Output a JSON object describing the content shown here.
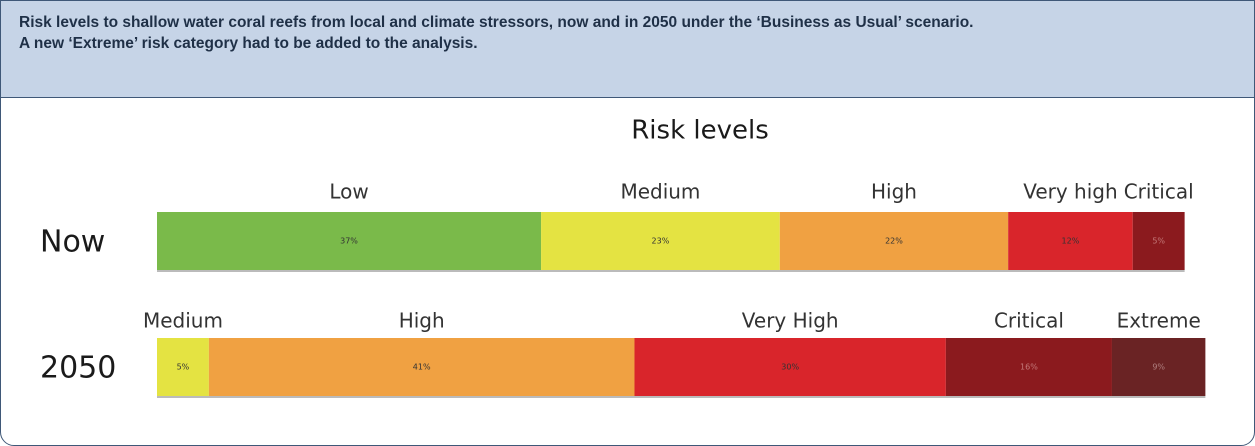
{
  "caption": [
    "Risk levels to shallow water coral reefs from local and climate stressors, now and in 2050 under the ‘Business as Usual’ scenario.",
    "A new ‘Extreme’ risk category had to be added to the analysis."
  ],
  "chart_data": {
    "type": "stacked_bar",
    "title": "Risk levels",
    "xlim": [
      0,
      100
    ],
    "bars": [
      {
        "label": "Now",
        "names": [
          "Low",
          "Medium",
          "High",
          "Very high",
          "Critical"
        ],
        "values": [
          37,
          23,
          22,
          12,
          5
        ],
        "value_labels": [
          "37%",
          "23%",
          "22%",
          "12%",
          "5%"
        ],
        "colors": [
          "#7aba4a",
          "#e4e342",
          "#f0a142",
          "#d9252b",
          "#8b1a1e"
        ],
        "label_colors": [
          "#333333",
          "#333333",
          "#333333",
          "#333333",
          "#c47a7a"
        ]
      },
      {
        "label": "2050",
        "names": [
          "Medium",
          "High",
          "Very High",
          "Critical",
          "Extreme"
        ],
        "values": [
          5,
          41,
          30,
          16,
          9
        ],
        "value_labels": [
          "5%",
          "41%",
          "30%",
          "16%",
          "9%"
        ],
        "colors": [
          "#e4e342",
          "#f0a142",
          "#d9252b",
          "#8b1a1e",
          "#6a2324"
        ],
        "label_colors": [
          "#333333",
          "#333333",
          "#333333",
          "#c47a7a",
          "#b08080"
        ]
      }
    ]
  }
}
